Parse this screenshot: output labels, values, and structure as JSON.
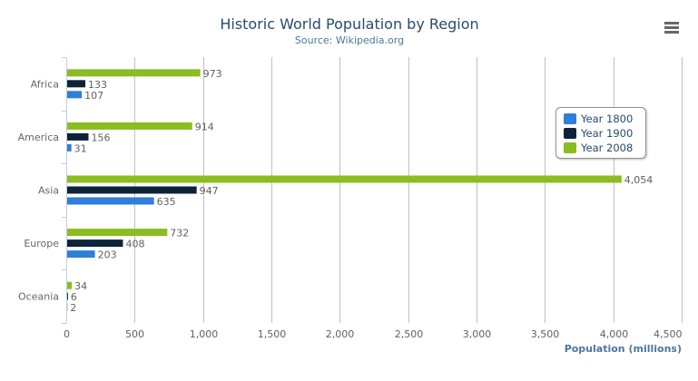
{
  "chart_data": {
    "type": "bar",
    "orientation": "horizontal",
    "title": "Historic World Population by Region",
    "subtitle": "Source: Wikipedia.org",
    "xlabel": "",
    "ylabel": "Population (millions)",
    "categories": [
      "Africa",
      "America",
      "Asia",
      "Europe",
      "Oceania"
    ],
    "series": [
      {
        "name": "Year 1800",
        "color": "#2f7ed8",
        "values": [
          107,
          31,
          635,
          203,
          2
        ]
      },
      {
        "name": "Year 1900",
        "color": "#0d233a",
        "values": [
          133,
          156,
          947,
          408,
          6
        ]
      },
      {
        "name": "Year 2008",
        "color": "#8bbc21",
        "values": [
          973,
          914,
          4054,
          732,
          34
        ]
      }
    ],
    "value_axis": {
      "range": [
        0,
        4500
      ],
      "ticks": [
        0,
        500,
        1000,
        1500,
        2000,
        2500,
        3000,
        3500,
        4000,
        4500
      ],
      "tick_labels": [
        "0",
        "500",
        "1,000",
        "1,500",
        "2,000",
        "2,500",
        "3,000",
        "3,500",
        "4,000",
        "4,500"
      ]
    },
    "grid": true,
    "data_labels": true,
    "legend_placement": "right",
    "menu_icon": "hamburger-menu-icon"
  }
}
